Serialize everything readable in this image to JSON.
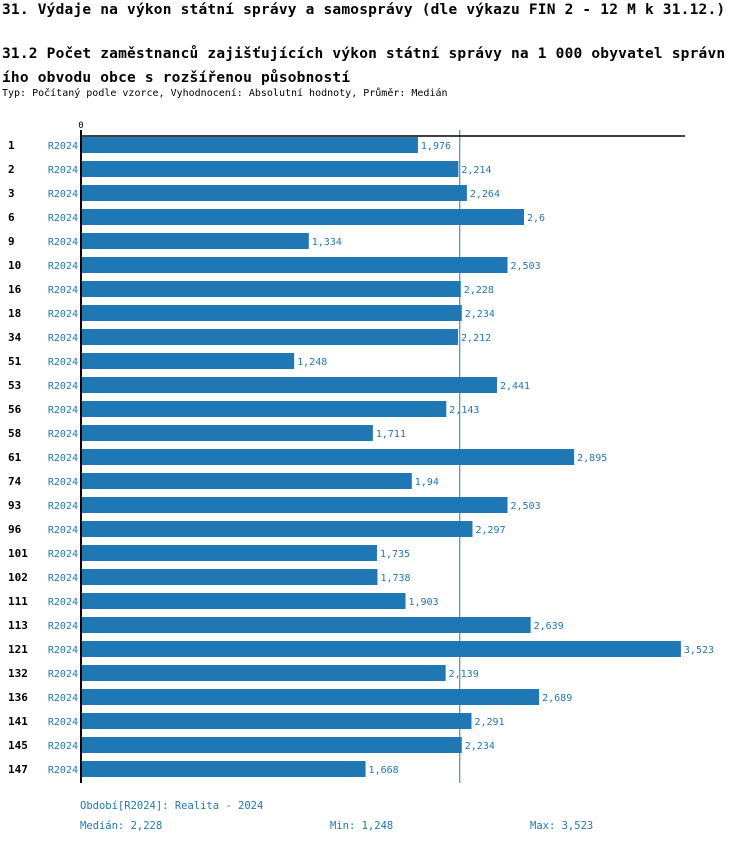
{
  "header": {
    "title": "31. Výdaje na výkon státní správy a samosprávy (dle výkazu FIN 2 - 12 M k 31.12.)",
    "subtitle_line1": "31.2 Počet zaměstnanců zajišťujících výkon státní správy na 1 000 obyvatel správn",
    "subtitle_line2": "ího obvodu obce s rozšířenou působností",
    "meta": "Typ: Počítaný podle vzorce, Vyhodnocení: Absolutní hodnoty, Průměr: Medián"
  },
  "colors": {
    "bar": "#1f77b4",
    "label": "#1f77b4",
    "axis": "#000000",
    "median_line": "#1f77b4"
  },
  "chart_data": {
    "type": "bar",
    "orientation": "horizontal",
    "title": "31.2 Počet zaměstnanců zajišťujících výkon státní správy na 1 000 obyvatel správního obvodu obce s rozšířenou působností",
    "x_tick_labels": [
      "0"
    ],
    "xlim": [
      0,
      3.523
    ],
    "series_label": "R2024",
    "categories": [
      "1",
      "2",
      "3",
      "6",
      "9",
      "10",
      "16",
      "18",
      "34",
      "51",
      "53",
      "56",
      "58",
      "61",
      "74",
      "93",
      "96",
      "101",
      "102",
      "111",
      "113",
      "121",
      "132",
      "136",
      "141",
      "145",
      "147"
    ],
    "values": [
      1.976,
      2.214,
      2.264,
      2.6,
      1.334,
      2.503,
      2.228,
      2.234,
      2.212,
      1.248,
      2.441,
      2.143,
      1.711,
      2.895,
      1.94,
      2.503,
      2.297,
      1.735,
      1.738,
      1.903,
      2.639,
      3.523,
      2.139,
      2.689,
      2.291,
      2.234,
      1.668
    ],
    "value_labels": [
      "1,976",
      "2,214",
      "2,264",
      "2,6",
      "1,334",
      "2,503",
      "2,228",
      "2,234",
      "2,212",
      "1,248",
      "2,441",
      "2,143",
      "1,711",
      "2,895",
      "1,94",
      "2,503",
      "2,297",
      "1,735",
      "1,738",
      "1,903",
      "2,639",
      "3,523",
      "2,139",
      "2,689",
      "2,291",
      "2,234",
      "1,668"
    ],
    "median": 2.228,
    "grid": false,
    "legend": "none"
  },
  "footer": {
    "period": "Období[R2024]: Realita - 2024",
    "median": "Medián: 2,228",
    "min": "Min: 1,248",
    "max": "Max: 3,523"
  }
}
